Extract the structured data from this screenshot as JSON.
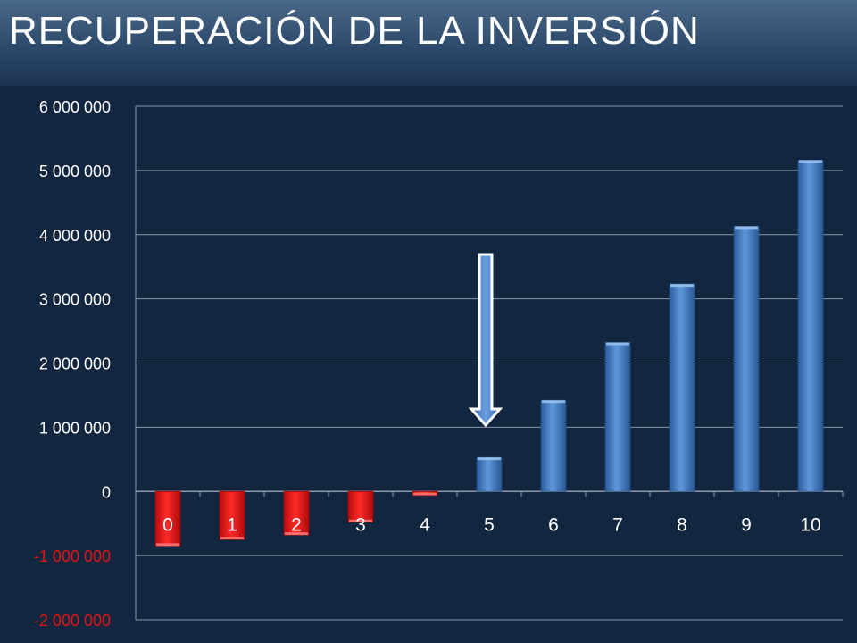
{
  "header": {
    "title": "RECUPERACIÓN DE LA INVERSIÓN"
  },
  "chart_data": {
    "type": "bar",
    "title": "",
    "xlabel": "",
    "ylabel": "",
    "categories": [
      "0",
      "1",
      "2",
      "3",
      "4",
      "5",
      "6",
      "7",
      "8",
      "9",
      "10"
    ],
    "values": [
      -850000,
      -750000,
      -680000,
      -480000,
      -60000,
      530000,
      1420000,
      2320000,
      3230000,
      4130000,
      5160000
    ],
    "ylim": [
      -2000000,
      6000000
    ],
    "y_ticks": [
      {
        "value": 6000000,
        "label": "6 000 000"
      },
      {
        "value": 5000000,
        "label": "5 000 000"
      },
      {
        "value": 4000000,
        "label": "4 000 000"
      },
      {
        "value": 3000000,
        "label": "3 000 000"
      },
      {
        "value": 2000000,
        "label": "2 000 000"
      },
      {
        "value": 1000000,
        "label": "1 000 000"
      },
      {
        "value": 0,
        "label": "0"
      },
      {
        "value": -1000000,
        "label": "-1 000 000"
      },
      {
        "value": -2000000,
        "label": "-2 000 000"
      }
    ],
    "grid": true,
    "annotation": {
      "type": "arrow-down",
      "category": "5"
    },
    "colors": {
      "positive": "#3d78c4",
      "negative": "#e01414",
      "axis_text": "#ffffff",
      "negative_tick_text": "#e01414",
      "grid": "#8a97a8",
      "arrow_fill": "#4a7fc8",
      "arrow_stroke": "#ffffff"
    }
  }
}
